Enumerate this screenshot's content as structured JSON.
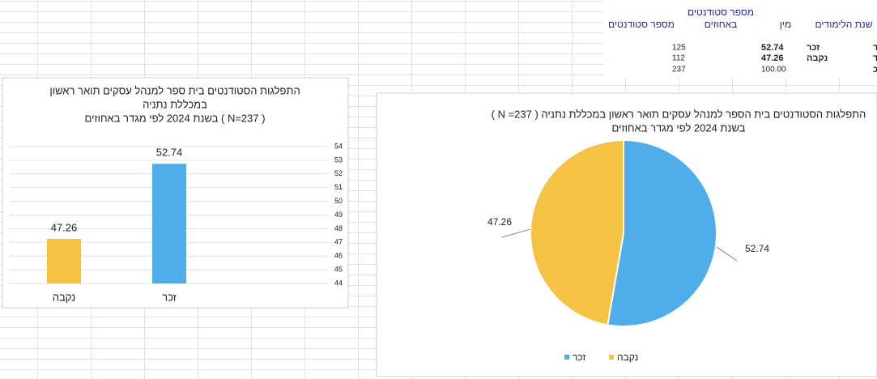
{
  "table": {
    "headers": [
      "שנת הלימודים",
      "מין",
      [
        "מספר סטודנטים",
        "באחוזים"
      ],
      "מספר סטודנטים"
    ],
    "rows": [
      [
        "תשפד",
        "זכר",
        "52.74",
        "125"
      ],
      [
        "תשפד",
        "נקבה",
        "47.26",
        "112"
      ],
      [
        "סה\"כ",
        null,
        "100.00",
        "237"
      ]
    ]
  },
  "chart_data": [
    {
      "type": "bar",
      "title": [
        "התפלגות הסטודנטים בית ספר למנהל עסקים תואר ראשון",
        "במכללת נתניה",
        "( N=237 ) בשנת 2024 לפי מגדר באחוזים"
      ],
      "categories": [
        "זכר",
        "נקבה"
      ],
      "values": [
        52.74,
        47.26
      ],
      "colors": [
        "#4fadea",
        "#f5c243"
      ],
      "ylim": [
        44,
        54
      ],
      "yticks": [
        44,
        45,
        46,
        47,
        48,
        49,
        50,
        51,
        52,
        53,
        54
      ],
      "grid": true
    },
    {
      "type": "pie",
      "title": [
        "התפלגות הסטודנטים בית הספר למנהל עסקים תואר ראשון במכללת נתניה ( N =237 )",
        "בשנת 2024  לפי מגדר באחוזים"
      ],
      "categories": [
        "זכר",
        "נקבה"
      ],
      "values": [
        52.74,
        47.26
      ],
      "colors": [
        "#4fadea",
        "#f5c243"
      ],
      "legend": "bottom"
    }
  ]
}
